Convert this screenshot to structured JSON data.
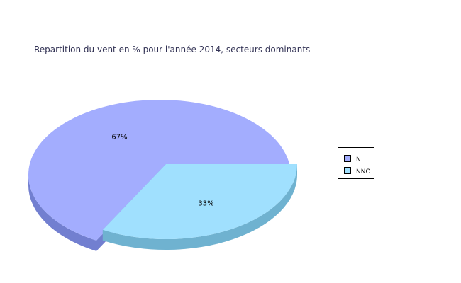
{
  "chart_data": {
    "type": "pie",
    "title": "Repartition du vent en % pour l'année 2014, secteurs dominants",
    "categories": [
      "N",
      "NNO"
    ],
    "values": [
      67,
      33
    ],
    "labels": [
      "67%",
      "33%"
    ],
    "colors": {
      "N": {
        "top": "#a3adfe",
        "side": "#727fd0"
      },
      "NNO": {
        "top": "#a0e0fe",
        "side": "#6fb2d0"
      }
    },
    "legend": "right",
    "exploded": "NNO",
    "style": "3d"
  }
}
